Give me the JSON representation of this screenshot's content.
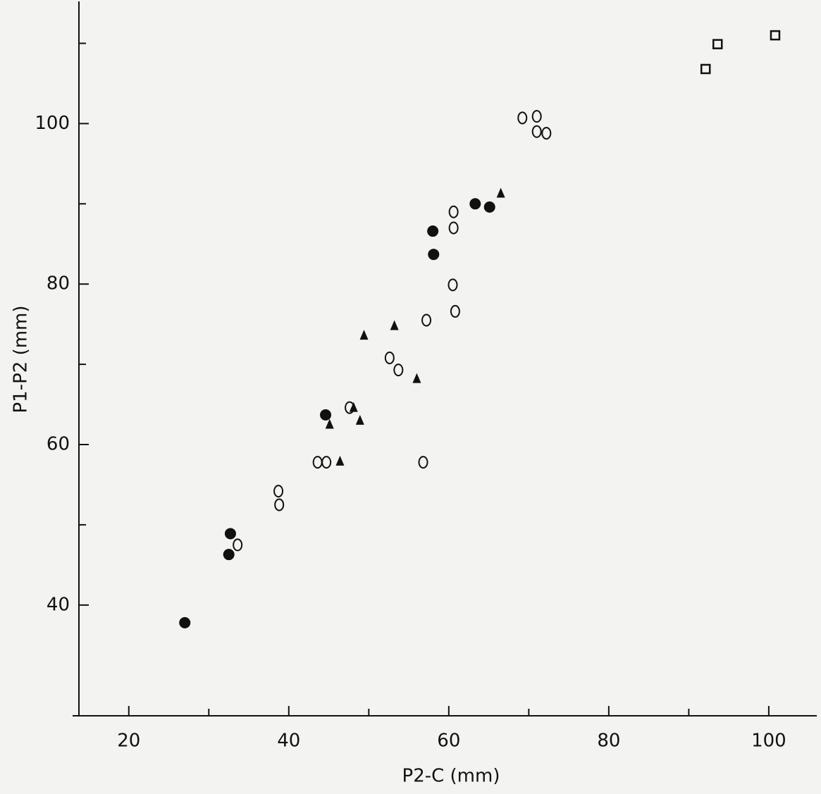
{
  "chart_data": {
    "type": "scatter",
    "x_label": "P2-C (mm)",
    "y_label": "P1-P2 (mm)",
    "xlim": [
      13.5,
      106
    ],
    "ylim": [
      26.2,
      115.4
    ],
    "xticks": [
      20,
      40,
      60,
      80,
      100
    ],
    "yticks": [
      40,
      60,
      80,
      100
    ],
    "xminorticks": [
      30,
      50,
      70,
      90
    ],
    "yminorticks": [
      50,
      70,
      90,
      110
    ],
    "series": [
      {
        "marker": "filled-circle",
        "color": "#111111",
        "x": [
          27.0,
          32.5,
          32.7,
          44.6,
          58.0,
          58.1,
          63.3,
          65.1
        ],
        "y": [
          37.8,
          46.3,
          48.9,
          63.7,
          86.6,
          83.7,
          90.0,
          89.6
        ]
      },
      {
        "marker": "open-circle",
        "color": "#111111",
        "x": [
          33.6,
          38.7,
          38.8,
          43.6,
          44.7,
          47.6,
          52.6,
          53.7,
          56.8,
          57.2,
          60.6,
          60.6,
          60.5,
          60.8,
          69.2,
          71.0,
          71.0,
          72.2
        ],
        "y": [
          47.5,
          54.2,
          52.5,
          57.8,
          57.8,
          64.6,
          70.8,
          69.3,
          57.8,
          75.5,
          89.0,
          87.0,
          79.9,
          76.6,
          100.7,
          100.9,
          99.0,
          98.8
        ]
      },
      {
        "marker": "triangle",
        "color": "#111111",
        "x": [
          46.4,
          45.1,
          48.1,
          48.9,
          49.4,
          53.2,
          56.0,
          66.5
        ],
        "y": [
          57.9,
          62.5,
          64.6,
          63.0,
          73.6,
          74.8,
          68.2,
          91.3
        ]
      },
      {
        "marker": "open-square",
        "color": "#111111",
        "x": [
          92.1,
          93.6,
          100.8
        ],
        "y": [
          106.8,
          109.9,
          111.0
        ]
      }
    ]
  }
}
